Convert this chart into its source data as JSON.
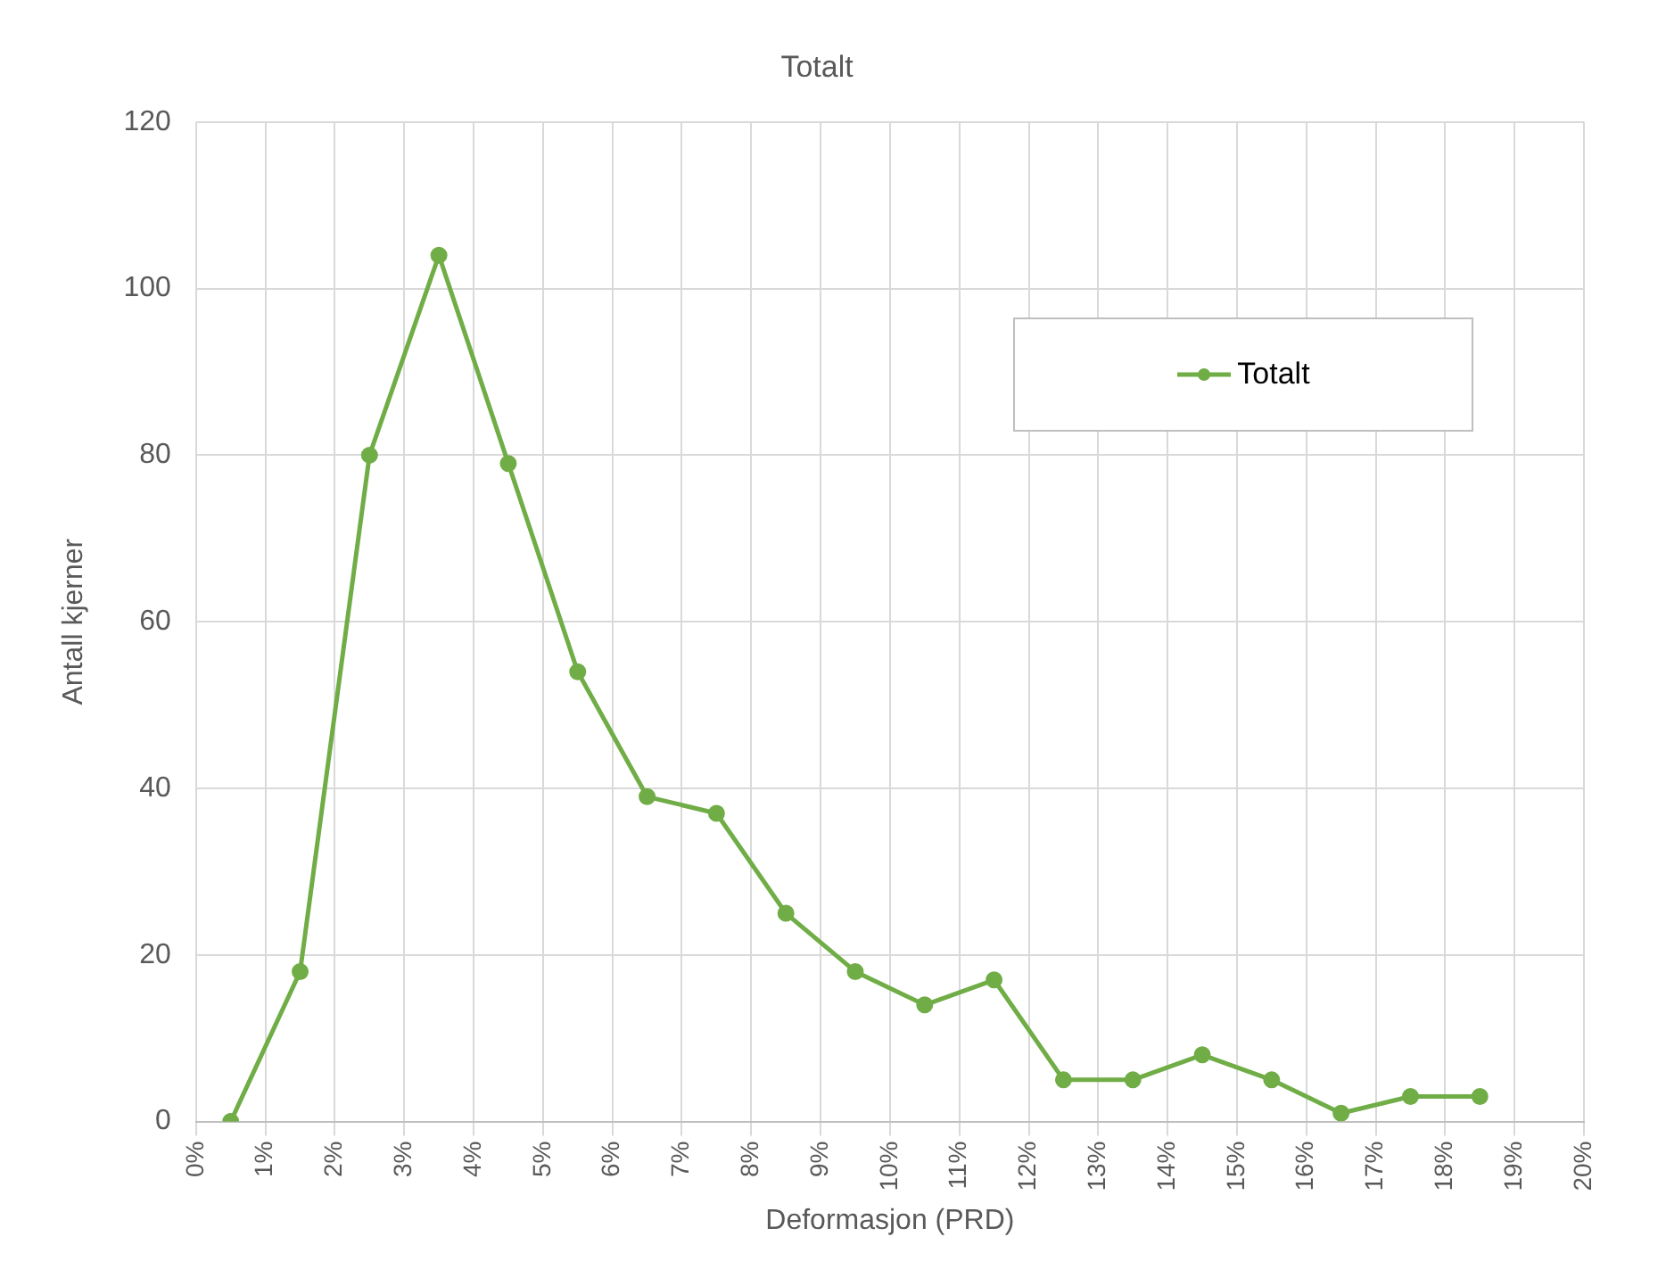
{
  "chart_data": {
    "type": "line",
    "title": "Totalt",
    "xlabel": "Deformasjon (PRD)",
    "ylabel": "Antall kjerner",
    "x": [
      0.5,
      1.5,
      2.5,
      3.5,
      4.5,
      5.5,
      6.5,
      7.5,
      8.5,
      9.5,
      10.5,
      11.5,
      12.5,
      13.5,
      14.5,
      15.5,
      16.5,
      17.5,
      18.5
    ],
    "series": [
      {
        "name": "Totalt",
        "color": "#70ad47",
        "values": [
          0,
          18,
          80,
          104,
          79,
          54,
          39,
          37,
          25,
          18,
          14,
          17,
          5,
          5,
          8,
          5,
          1,
          3,
          3
        ]
      }
    ],
    "xlim": [
      0,
      20
    ],
    "xticks": [
      {
        "value": 0,
        "label": "0%"
      },
      {
        "value": 1,
        "label": "1%"
      },
      {
        "value": 2,
        "label": "2%"
      },
      {
        "value": 3,
        "label": "3%"
      },
      {
        "value": 4,
        "label": "4%"
      },
      {
        "value": 5,
        "label": "5%"
      },
      {
        "value": 6,
        "label": "6%"
      },
      {
        "value": 7,
        "label": "7%"
      },
      {
        "value": 8,
        "label": "8%"
      },
      {
        "value": 9,
        "label": "9%"
      },
      {
        "value": 10,
        "label": "10%"
      },
      {
        "value": 11,
        "label": "11%"
      },
      {
        "value": 12,
        "label": "12%"
      },
      {
        "value": 13,
        "label": "13%"
      },
      {
        "value": 14,
        "label": "14%"
      },
      {
        "value": 15,
        "label": "15%"
      },
      {
        "value": 16,
        "label": "16%"
      },
      {
        "value": 17,
        "label": "17%"
      },
      {
        "value": 18,
        "label": "18%"
      },
      {
        "value": 19,
        "label": "19%"
      },
      {
        "value": 20,
        "label": "20%"
      }
    ],
    "ylim": [
      0,
      120
    ],
    "yticks": [
      0,
      20,
      40,
      60,
      80,
      100,
      120
    ],
    "grid": true,
    "legend": "top right",
    "marker": "circle",
    "line_style": "solid"
  }
}
